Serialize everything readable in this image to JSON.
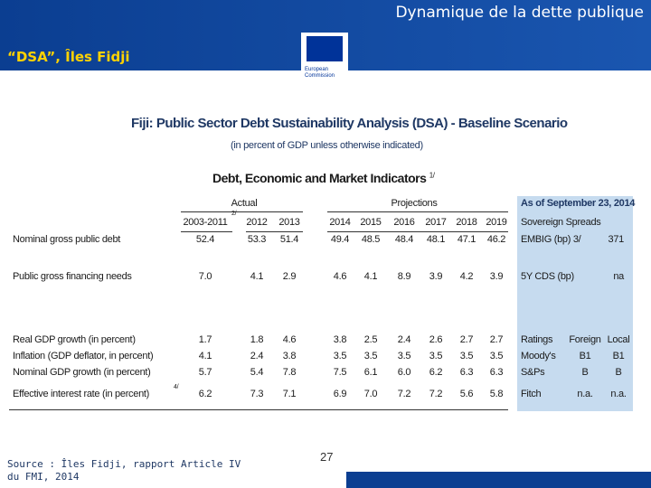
{
  "header": {
    "title": "Dynamique de la dette publique",
    "subtitle": "“DSA”, Îles Fidji",
    "logo_text": [
      "European",
      "Commission"
    ]
  },
  "table": {
    "title": "Fiji: Public Sector Debt Sustainability Analysis (DSA) - Baseline Scenario",
    "subtitle": "(in percent of GDP unless otherwise indicated)",
    "section": "Debt, Economic and Market Indicators",
    "section_note": "1/",
    "groups": [
      "Actual",
      "Projections"
    ],
    "columns": [
      "2003-2011",
      "2012",
      "2013",
      "2014",
      "2015",
      "2016",
      "2017",
      "2018",
      "2019"
    ],
    "column_note": "2/",
    "rows": [
      {
        "label": "Nominal gross public debt",
        "values": [
          "52.4",
          "53.3",
          "51.4",
          "49.4",
          "48.5",
          "48.4",
          "48.1",
          "47.1",
          "46.2"
        ]
      },
      {
        "label": "Public gross financing needs",
        "values": [
          "7.0",
          "4.1",
          "2.9",
          "4.6",
          "4.1",
          "8.9",
          "3.9",
          "4.2",
          "3.9"
        ]
      },
      {
        "label": "Real GDP growth (in percent)",
        "values": [
          "1.7",
          "1.8",
          "4.6",
          "3.8",
          "2.5",
          "2.4",
          "2.6",
          "2.7",
          "2.7"
        ]
      },
      {
        "label": "Inflation (GDP deflator, in percent)",
        "values": [
          "4.1",
          "2.4",
          "3.8",
          "3.5",
          "3.5",
          "3.5",
          "3.5",
          "3.5",
          "3.5"
        ]
      },
      {
        "label": "Nominal GDP growth (in percent)",
        "values": [
          "5.7",
          "5.4",
          "7.8",
          "7.5",
          "6.1",
          "6.0",
          "6.2",
          "6.3",
          "6.3"
        ]
      },
      {
        "label": "Effective interest rate (in percent)",
        "note": "4/",
        "values": [
          "6.2",
          "7.3",
          "7.1",
          "6.9",
          "7.0",
          "7.2",
          "7.2",
          "5.6",
          "5.8"
        ]
      }
    ],
    "panel": {
      "title": "As of September 23, 2014",
      "rows": [
        [
          "Sovereign Spreads"
        ],
        [
          "EMBIG (bp) 3/",
          "371"
        ],
        [
          "5Y CDS (bp)",
          "na"
        ],
        [
          "Ratings",
          "Foreign",
          "Local"
        ],
        [
          "Moody's",
          "B1",
          "B1"
        ],
        [
          "S&Ps",
          "B",
          "B"
        ],
        [
          "Fitch",
          "n.a.",
          "n.a."
        ]
      ]
    }
  },
  "footer": {
    "source": [
      "Source : Îles Fidji, rapport Article IV",
      "du FMI, 2014"
    ],
    "page": "27"
  }
}
